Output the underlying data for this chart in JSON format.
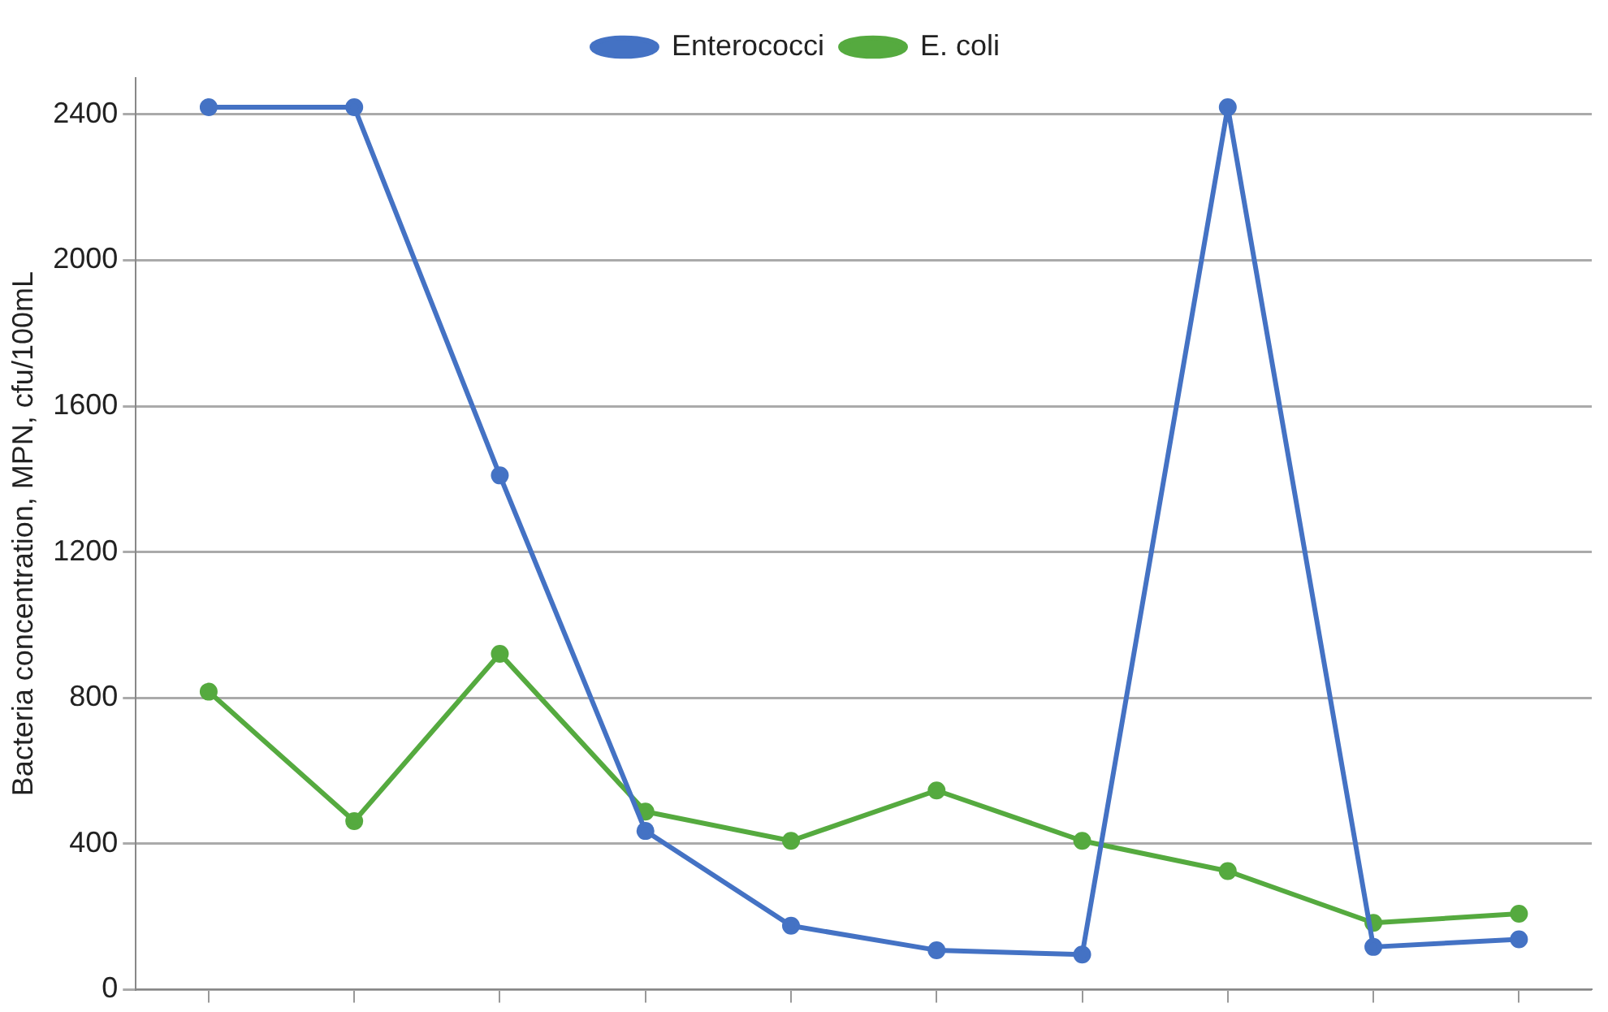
{
  "chart_data": {
    "type": "line",
    "ylabel": "Bacteria concentration, MPN, cfu/100mL",
    "categories": [
      null,
      null,
      null,
      null,
      null,
      null,
      null,
      null,
      null,
      null
    ],
    "series": [
      {
        "name": "Enterococci",
        "color": "#4472c4",
        "values": [
          2420,
          2420,
          1410,
          435,
          175,
          108,
          96,
          2420,
          117,
          138
        ]
      },
      {
        "name": "E. coli",
        "color": "#55aa3f",
        "values": [
          817,
          462,
          921,
          488,
          408,
          546,
          408,
          325,
          183,
          208
        ]
      }
    ],
    "ylim": [
      0,
      2500
    ],
    "yticks": [
      0,
      400,
      800,
      1200,
      1600,
      2000,
      2400
    ],
    "grid": "y",
    "legend": "top",
    "marker": "circle",
    "line_style": "solid",
    "tick_labels": "y"
  }
}
